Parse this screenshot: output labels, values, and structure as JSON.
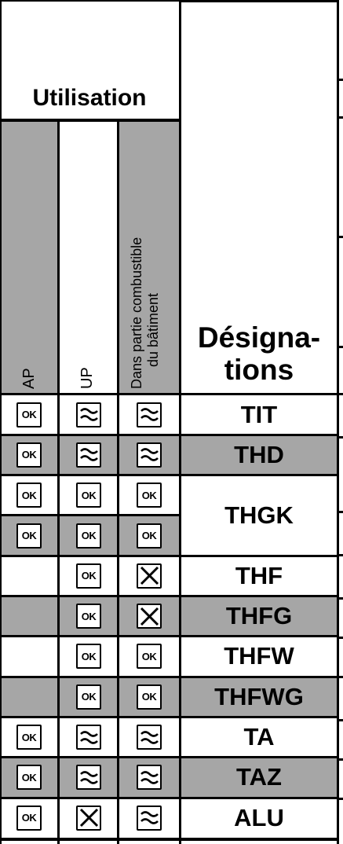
{
  "header": {
    "title": "Utilisation",
    "columns": [
      "AP",
      "UP"
    ],
    "building_line1": "Dans partie combustible",
    "building_line2": "du bâtiment",
    "designations_line1": "Désigna-",
    "designations_line2": "tions"
  },
  "rows": [
    {
      "ap": "ok",
      "up": "approx",
      "bat": "approx",
      "gray": false,
      "designation": "TIT"
    },
    {
      "ap": "ok",
      "up": "approx",
      "bat": "approx",
      "gray": true,
      "designation": "THD"
    },
    {
      "ap": "ok",
      "up": "ok",
      "bat": "ok",
      "gray": false,
      "designation": "THGK"
    },
    {
      "ap": "ok",
      "up": "ok",
      "bat": "ok",
      "gray": true,
      "designation": ""
    },
    {
      "ap": "",
      "up": "ok",
      "bat": "x",
      "gray": false,
      "designation": "THF"
    },
    {
      "ap": "",
      "up": "ok",
      "bat": "x",
      "gray": true,
      "designation": "THFG"
    },
    {
      "ap": "",
      "up": "ok",
      "bat": "ok",
      "gray": false,
      "designation": "THFW"
    },
    {
      "ap": "",
      "up": "ok",
      "bat": "ok",
      "gray": true,
      "designation": "THFWG"
    },
    {
      "ap": "ok",
      "up": "approx",
      "bat": "approx",
      "gray": false,
      "designation": "TA"
    },
    {
      "ap": "ok",
      "up": "approx",
      "bat": "approx",
      "gray": true,
      "designation": "TAZ"
    },
    {
      "ap": "ok",
      "up": "x",
      "bat": "approx",
      "gray": false,
      "designation": "ALU"
    }
  ],
  "icon_labels": {
    "ok": "OK"
  },
  "icons": {
    "ok": "ok-icon",
    "approx": "approx-icon",
    "x": "cross-box-icon"
  },
  "colors": {
    "gray": "#a6a6a6",
    "line": "#000000",
    "background": "#ffffff"
  }
}
